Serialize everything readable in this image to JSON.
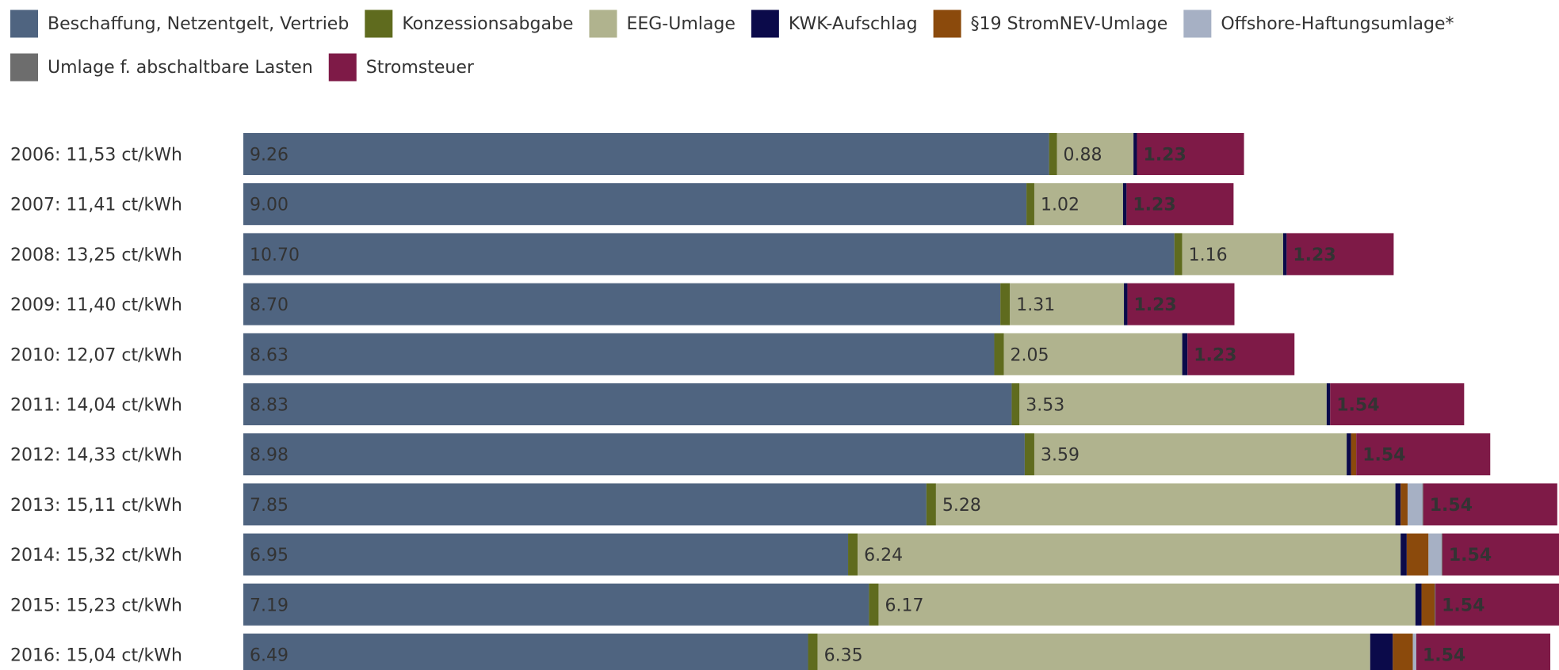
{
  "chart_data": {
    "type": "stacked-barh",
    "categories": [
      "2006: 11,53 ct/kWh",
      "2007: 11,41 ct/kWh",
      "2008: 13,25 ct/kWh",
      "2009: 11,40 ct/kWh",
      "2010: 12,07 ct/kWh",
      "2011: 14,04 ct/kWh",
      "2012: 14,33 ct/kWh",
      "2013: 15,11 ct/kWh",
      "2014: 15,32 ct/kWh",
      "2015: 15,23 ct/kWh",
      "2016: 15,04 ct/kWh"
    ],
    "xlim": [
      0,
      15.12
    ],
    "series": [
      {
        "name": "Beschaffung, Netzentgelt, Vertrieb",
        "color": "#4f6480",
        "values": [
          9.26,
          9.0,
          10.7,
          8.7,
          8.63,
          8.83,
          8.98,
          7.85,
          6.95,
          7.19,
          6.49
        ],
        "value_labels": [
          "9.26",
          "9.00",
          "10.70",
          "8.70",
          "8.63",
          "8.83",
          "8.98",
          "7.85",
          "6.95",
          "7.19",
          "6.49"
        ]
      },
      {
        "name": "Konzessionsabgabe",
        "color": "#5f6b1e",
        "values": [
          0.09,
          0.09,
          0.09,
          0.11,
          0.11,
          0.09,
          0.11,
          0.11,
          0.11,
          0.11,
          0.11
        ]
      },
      {
        "name": "EEG-Umlage",
        "color": "#b0b38e",
        "values": [
          0.88,
          1.02,
          1.16,
          1.31,
          2.05,
          3.53,
          3.59,
          5.28,
          6.24,
          6.17,
          6.35
        ],
        "value_labels": [
          "0.88",
          "1.02",
          "1.16",
          "1.31",
          "2.05",
          "3.53",
          "3.59",
          "5.28",
          "6.24",
          "6.17",
          "6.35"
        ]
      },
      {
        "name": "KWK-Aufschlag",
        "color": "#0b0a4a",
        "values": [
          0.04,
          0.04,
          0.04,
          0.04,
          0.06,
          0.04,
          0.05,
          0.06,
          0.07,
          0.07,
          0.26
        ]
      },
      {
        "name": "§19 StromNEV-Umlage",
        "color": "#8b4a0c",
        "values": [
          0,
          0,
          0,
          0,
          0,
          0,
          0.06,
          0.08,
          0.25,
          0.15,
          0.23
        ]
      },
      {
        "name": "Offshore-Haftungsumlage*",
        "color": "#a6b0c4",
        "values": [
          0,
          0,
          0,
          0,
          0,
          0,
          0,
          0.17,
          0.15,
          0,
          0.04
        ]
      },
      {
        "name": "Umlage f. abschaltbare Lasten",
        "color": "#6d6d6d",
        "values": [
          0,
          0,
          0,
          0,
          0,
          0,
          0,
          0.01,
          0.01,
          0.01,
          0
        ]
      },
      {
        "name": "Stromsteuer",
        "color": "#7e1a47",
        "values": [
          1.23,
          1.23,
          1.23,
          1.23,
          1.23,
          1.54,
          1.54,
          1.54,
          1.54,
          1.54,
          1.54
        ],
        "value_labels": [
          "1.23",
          "1.23",
          "1.23",
          "1.23",
          "1.23",
          "1.54",
          "1.54",
          "1.54",
          "1.54",
          "1.54",
          "1.54"
        ]
      }
    ]
  }
}
